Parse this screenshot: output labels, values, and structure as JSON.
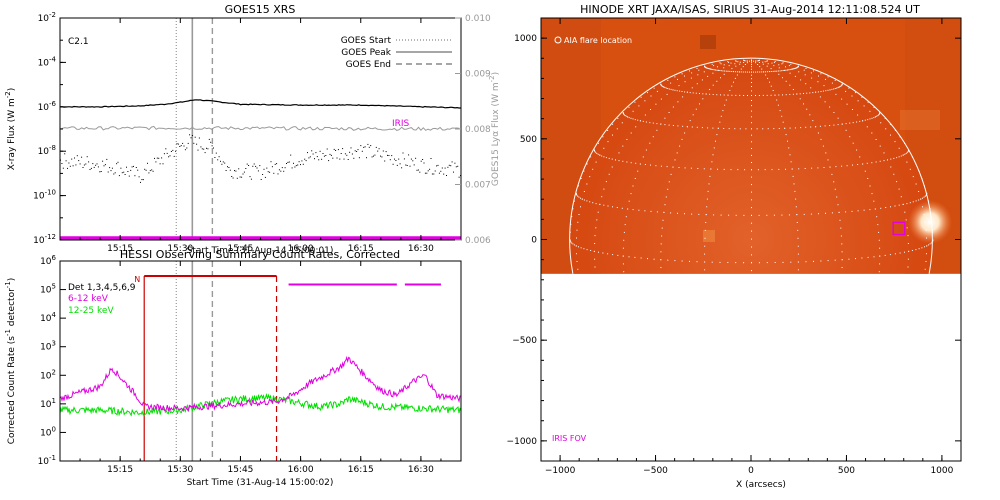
{
  "colors": {
    "goes_flux": "#000000",
    "goes_lya": "#9a9a9a",
    "iris": "#e000e0",
    "hessi_det": "#000000",
    "hessi_low": "#e000e0",
    "hessi_mid": "#00e000",
    "hessi_marker": "#cc0000",
    "limb": "#ffffff",
    "map_bg": "#d84a10"
  },
  "chart_data": [
    {
      "type": "line",
      "title": "GOES15 XRS",
      "class_label": "C2.1",
      "xlabel": "Start Time (31-Aug-14 15:00:01)",
      "ylabel": "X-ray Flux (W m",
      "ylabel_sup": "-2",
      "ylabel_end": ")",
      "y2label": "GOES15 Lyα Flux (W m",
      "y2label_sup": "-2",
      "y2label_end": ")",
      "yscale": "log",
      "xlim": [
        "15:00",
        "16:40"
      ],
      "ylim": [
        1e-12,
        0.01
      ],
      "y2lim": [
        0.006,
        0.01
      ],
      "xticks": [
        "15:15",
        "15:30",
        "15:45",
        "16:00",
        "16:15",
        "16:30"
      ],
      "yticks": [
        {
          "base": "10",
          "exp": "-2"
        },
        {
          "base": "10",
          "exp": "-4"
        },
        {
          "base": "10",
          "exp": "-6"
        },
        {
          "base": "10",
          "exp": "-8"
        },
        {
          "base": "10",
          "exp": "-10"
        },
        {
          "base": "10",
          "exp": "-12"
        }
      ],
      "y2ticks": [
        "0.010",
        "0.009",
        "0.008",
        "0.007",
        "0.006"
      ],
      "legend": [
        "GOES Start",
        "GOES Peak",
        "GOES End"
      ],
      "legend_position": "top-right",
      "iris_label": "IRIS",
      "markers": {
        "start": "15:29",
        "peak": "15:33",
        "end": "15:38"
      },
      "series": [
        {
          "name": "GOES Start",
          "x": [
            "15:00",
            "15:10",
            "15:20",
            "15:26",
            "15:30",
            "15:34",
            "15:38",
            "15:45",
            "16:00",
            "16:15",
            "16:30",
            "16:40"
          ],
          "values": [
            1e-06,
            1e-06,
            1.1e-06,
            1.3e-06,
            1.6e-06,
            2.1e-06,
            1.8e-06,
            1.3e-06,
            1.2e-06,
            1.2e-06,
            1e-06,
            9e-07
          ]
        },
        {
          "name": "GOES Peak",
          "x": [
            "15:00",
            "15:08",
            "15:14",
            "15:20",
            "15:26",
            "15:32",
            "15:38",
            "15:42",
            "15:50",
            "16:00",
            "16:15",
            "16:30",
            "16:40"
          ],
          "values": [
            4e-09,
            3e-09,
            2e-09,
            8e-10,
            6e-09,
            3e-08,
            1.5e-08,
            1.5e-09,
            1.2e-09,
            5e-09,
            1.2e-08,
            2.5e-09,
            1.5e-09
          ]
        },
        {
          "name": "GOES End",
          "x": [
            "15:00",
            "15:30",
            "16:00",
            "16:40"
          ],
          "values": [
            0.00801,
            0.00802,
            0.00801,
            0.008
          ]
        },
        {
          "name": "IRIS",
          "x": [
            "15:00",
            "16:40"
          ],
          "values": [
            1.2e-12,
            1.2e-12
          ]
        }
      ]
    },
    {
      "type": "line",
      "title": "HESSI Observing Summary Count Rates, Corrected",
      "xlabel": "Start Time (31-Aug-14 15:00:02)",
      "ylabel": "Corrected Count Rate (s",
      "ylabel_sup": "-1",
      "ylabel_mid": " detector",
      "ylabel_sup2": "-1",
      "ylabel_end": ")",
      "yscale": "log",
      "xlim": [
        "15:00",
        "16:40"
      ],
      "ylim": [
        0.1,
        1000000.0
      ],
      "xticks": [
        "15:15",
        "15:30",
        "15:45",
        "16:00",
        "16:15",
        "16:30"
      ],
      "yticks": [
        {
          "base": "10",
          "exp": "6"
        },
        {
          "base": "10",
          "exp": "5"
        },
        {
          "base": "10",
          "exp": "4"
        },
        {
          "base": "10",
          "exp": "3"
        },
        {
          "base": "10",
          "exp": "2"
        },
        {
          "base": "10",
          "exp": "1"
        },
        {
          "base": "10",
          "exp": "0"
        },
        {
          "base": "10",
          "exp": "-1"
        }
      ],
      "legend": [
        "Det 1,3,4,5,6,9",
        "6-12 keV",
        "12-25 keV"
      ],
      "legend_position": "top-left",
      "night_label": "N",
      "night_interval": [
        "15:21",
        "15:54"
      ],
      "saa_intervals": [
        [
          "15:57",
          "16:24"
        ],
        [
          "16:26",
          "16:35"
        ]
      ],
      "markers": {
        "start": "15:29",
        "peak": "15:33",
        "end": "15:38"
      },
      "series": [
        {
          "name": "6-12 keV",
          "x": [
            "15:00",
            "15:05",
            "15:10",
            "15:13",
            "15:16",
            "15:19",
            "15:21",
            "15:30",
            "15:45",
            "15:54",
            "15:58",
            "16:02",
            "16:06",
            "16:10",
            "16:12",
            "16:16",
            "16:20",
            "16:24",
            "16:28",
            "16:31",
            "16:34",
            "16:40"
          ],
          "values": [
            15,
            25,
            40,
            180,
            60,
            20,
            8,
            7,
            10,
            12,
            20,
            50,
            100,
            200,
            400,
            100,
            30,
            20,
            60,
            100,
            20,
            15
          ]
        },
        {
          "name": "12-25 keV",
          "x": [
            "15:00",
            "15:10",
            "15:20",
            "15:30",
            "15:40",
            "15:45",
            "15:50",
            "15:54",
            "15:58",
            "16:05",
            "16:10",
            "16:12",
            "16:20",
            "16:30",
            "16:40"
          ],
          "values": [
            6,
            6,
            5,
            6,
            12,
            15,
            16,
            15,
            12,
            8,
            10,
            15,
            8,
            7,
            6
          ]
        }
      ]
    },
    {
      "type": "heatmap",
      "title": "HINODE XRT JAXA/ISAS, SIRIUS 31-Aug-2014 12:11:08.524 UT",
      "xlabel": "X (arcsecs)",
      "ylabel": "",
      "xlim": [
        -1100,
        1100
      ],
      "ylim": [
        -1100,
        1100
      ],
      "xticks": [
        "−1000",
        "−500",
        "0",
        "500",
        "1000"
      ],
      "yticks": [
        "1000",
        "500",
        "0",
        "−500",
        "−1000"
      ],
      "image_extent_y": [
        -170,
        1100
      ],
      "solar_radius": 950,
      "flare_location_label": "AIA flare location",
      "flare_box": {
        "x": [
          745,
          805
        ],
        "y": [
          25,
          85
        ]
      },
      "fov_label": "IRIS FOV"
    }
  ]
}
